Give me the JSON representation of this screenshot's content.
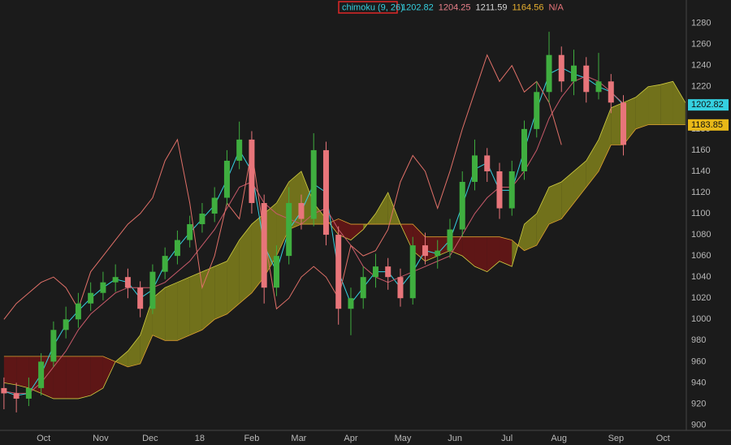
{
  "chart_data": {
    "type": "candlestick",
    "study_label": "chimoku (9, 26)",
    "study_values": [
      {
        "value": 1202.82,
        "color": "#35d0e0"
      },
      {
        "value": 1204.25,
        "color": "#e9808a"
      },
      {
        "value": 1211.59,
        "color": "#d8d8d8"
      },
      {
        "value": 1164.56,
        "color": "#e8b030"
      }
    ],
    "study_na": "N/A",
    "xlim": [
      -1.6,
      275.4
    ],
    "xticks": [
      {
        "value": 16,
        "label": "Oct"
      },
      {
        "value": 39,
        "label": "Nov"
      },
      {
        "value": 59,
        "label": "Dec"
      },
      {
        "value": 79,
        "label": "18"
      },
      {
        "value": 100,
        "label": "Feb"
      },
      {
        "value": 119,
        "label": "Mar"
      },
      {
        "value": 140,
        "label": "Apr"
      },
      {
        "value": 161,
        "label": "May"
      },
      {
        "value": 182,
        "label": "Jun"
      },
      {
        "value": 203,
        "label": "Jul"
      },
      {
        "value": 224,
        "label": "Aug"
      },
      {
        "value": 247,
        "label": "Sep"
      },
      {
        "value": 266,
        "label": "Oct"
      }
    ],
    "ylim": [
      895,
      1302
    ],
    "yticks": [
      900,
      920,
      940,
      960,
      980,
      1000,
      1020,
      1040,
      1060,
      1080,
      1100,
      1120,
      1140,
      1160,
      1180,
      1200,
      1220,
      1240,
      1260,
      1280
    ],
    "grid": true,
    "up_color": "#3fae3f",
    "down_color": "#e8757a",
    "x": [
      0,
      5,
      10,
      15,
      20,
      25,
      30,
      35,
      40,
      45,
      50,
      55,
      60,
      65,
      70,
      75,
      80,
      85,
      90,
      95,
      100,
      105,
      110,
      115,
      120,
      125,
      130,
      135,
      140,
      145,
      150,
      155,
      160,
      165,
      170,
      175,
      180,
      185,
      190,
      195,
      200,
      205,
      210,
      215,
      220,
      225,
      230,
      235,
      240,
      245,
      250
    ],
    "open": [
      935,
      930,
      925,
      935,
      960,
      990,
      1000,
      1015,
      1025,
      1035,
      1040,
      1030,
      1010,
      1045,
      1060,
      1075,
      1090,
      1100,
      1115,
      1150,
      1170,
      1110,
      1030,
      1060,
      1110,
      1095,
      1160,
      1080,
      1010,
      1020,
      1040,
      1050,
      1040,
      1020,
      1070,
      1060,
      1065,
      1085,
      1130,
      1155,
      1140,
      1105,
      1140,
      1180,
      1215,
      1250,
      1225,
      1240,
      1215,
      1225,
      1205
    ],
    "high": [
      945,
      940,
      945,
      968,
      998,
      1012,
      1025,
      1035,
      1045,
      1052,
      1048,
      1036,
      1052,
      1068,
      1084,
      1098,
      1110,
      1125,
      1160,
      1187,
      1178,
      1118,
      1070,
      1125,
      1118,
      1176,
      1168,
      1088,
      1030,
      1050,
      1062,
      1058,
      1048,
      1078,
      1082,
      1075,
      1095,
      1140,
      1170,
      1162,
      1148,
      1150,
      1188,
      1225,
      1272,
      1258,
      1255,
      1248,
      1252,
      1232,
      1212
    ],
    "low": [
      915,
      912,
      918,
      928,
      955,
      982,
      992,
      1008,
      1018,
      1026,
      1020,
      1002,
      1005,
      1038,
      1052,
      1068,
      1082,
      1092,
      1108,
      1142,
      1100,
      1015,
      1022,
      1052,
      1085,
      1088,
      1070,
      995,
      985,
      1010,
      1030,
      1028,
      1012,
      1014,
      1052,
      1048,
      1058,
      1078,
      1122,
      1130,
      1095,
      1098,
      1132,
      1172,
      1205,
      1215,
      1212,
      1205,
      1208,
      1195,
      1155
    ],
    "close": [
      930,
      925,
      935,
      960,
      990,
      1000,
      1015,
      1025,
      1035,
      1040,
      1030,
      1010,
      1045,
      1060,
      1075,
      1090,
      1100,
      1115,
      1150,
      1170,
      1110,
      1030,
      1060,
      1110,
      1095,
      1160,
      1080,
      1010,
      1020,
      1040,
      1050,
      1040,
      1020,
      1070,
      1060,
      1065,
      1085,
      1130,
      1155,
      1140,
      1105,
      1140,
      1180,
      1215,
      1250,
      1225,
      1240,
      1215,
      1225,
      1205,
      1165
    ],
    "lines": [
      {
        "color": "#35d0e0",
        "x": [
          0,
          5,
          10,
          15,
          20,
          25,
          30,
          35,
          40,
          45,
          50,
          55,
          60,
          65,
          70,
          75,
          80,
          85,
          90,
          95,
          100,
          105,
          110,
          115,
          120,
          125,
          130,
          135,
          140,
          145,
          150,
          155,
          160,
          165,
          170,
          175,
          180,
          185,
          190,
          195,
          200,
          205,
          210,
          215,
          220,
          225,
          230,
          235,
          240,
          245,
          250
        ],
        "values": [
          932,
          928,
          930,
          948,
          975,
          995,
          1008,
          1020,
          1030,
          1038,
          1035,
          1020,
          1028,
          1052,
          1068,
          1082,
          1095,
          1108,
          1132,
          1160,
          1140,
          1070,
          1045,
          1085,
          1102,
          1128,
          1120,
          1045,
          1015,
          1030,
          1045,
          1045,
          1030,
          1045,
          1065,
          1062,
          1075,
          1108,
          1142,
          1148,
          1122,
          1122,
          1160,
          1198,
          1232,
          1238,
          1232,
          1228,
          1220,
          1215,
          1203
        ]
      },
      {
        "color": "#c85a6a",
        "x": [
          0,
          5,
          10,
          15,
          20,
          25,
          30,
          35,
          40,
          45,
          50,
          55,
          60,
          65,
          70,
          75,
          80,
          85,
          90,
          95,
          100,
          105,
          110,
          115,
          120,
          125,
          130,
          135,
          140,
          145,
          150,
          155,
          160,
          165,
          170,
          175,
          180,
          185,
          190,
          195,
          200,
          205,
          210,
          215,
          220,
          225,
          230,
          235,
          240,
          245,
          250
        ],
        "values": [
          932,
          930,
          930,
          940,
          955,
          970,
          990,
          1005,
          1015,
          1025,
          1030,
          1030,
          1030,
          1035,
          1045,
          1055,
          1070,
          1085,
          1105,
          1125,
          1130,
          1110,
          1100,
          1095,
          1090,
          1100,
          1105,
          1085,
          1070,
          1050,
          1040,
          1035,
          1040,
          1045,
          1050,
          1055,
          1060,
          1080,
          1100,
          1115,
          1125,
          1125,
          1140,
          1160,
          1190,
          1210,
          1225,
          1230,
          1225,
          1215,
          1204
        ]
      },
      {
        "color": "#e07068",
        "x": [
          0,
          5,
          10,
          15,
          20,
          25,
          30,
          35,
          40,
          45,
          50,
          55,
          60,
          65,
          70,
          75,
          80,
          85,
          90,
          95,
          100,
          105,
          110,
          115,
          120,
          125,
          130,
          135,
          140,
          145,
          150,
          155,
          160,
          165,
          170,
          175,
          180,
          185,
          190,
          195,
          200,
          205,
          210,
          215,
          220,
          225
        ],
        "values": [
          1000,
          1015,
          1025,
          1035,
          1040,
          1030,
          1010,
          1045,
          1060,
          1075,
          1090,
          1100,
          1115,
          1150,
          1170,
          1110,
          1030,
          1060,
          1110,
          1095,
          1160,
          1080,
          1010,
          1020,
          1040,
          1050,
          1040,
          1020,
          1070,
          1060,
          1065,
          1085,
          1130,
          1155,
          1140,
          1105,
          1140,
          1180,
          1215,
          1250,
          1225,
          1240,
          1215,
          1225,
          1205,
          1165
        ]
      }
    ],
    "cloud": {
      "bull_color": "#8f8f1c",
      "bear_color": "#761616",
      "a_color": "#d0cc40",
      "b_color": "#e0a030",
      "x": [
        0,
        5,
        10,
        15,
        20,
        25,
        30,
        35,
        40,
        45,
        50,
        55,
        60,
        65,
        70,
        75,
        80,
        85,
        90,
        95,
        100,
        105,
        110,
        115,
        120,
        125,
        130,
        135,
        140,
        145,
        150,
        155,
        160,
        165,
        170,
        175,
        180,
        185,
        190,
        195,
        200,
        205,
        210,
        215,
        220,
        225,
        230,
        235,
        240,
        245,
        250,
        255,
        260,
        265,
        270,
        275
      ],
      "span_a": [
        940,
        938,
        935,
        930,
        925,
        925,
        925,
        928,
        935,
        960,
        970,
        985,
        1020,
        1030,
        1035,
        1040,
        1045,
        1050,
        1055,
        1075,
        1090,
        1100,
        1110,
        1130,
        1140,
        1110,
        1095,
        1080,
        1075,
        1085,
        1100,
        1120,
        1090,
        1065,
        1055,
        1060,
        1065,
        1060,
        1050,
        1045,
        1055,
        1050,
        1090,
        1100,
        1125,
        1130,
        1140,
        1150,
        1170,
        1200,
        1205,
        1210,
        1220,
        1222,
        1225,
        1205
      ],
      "span_b": [
        965,
        965,
        965,
        965,
        965,
        965,
        965,
        965,
        965,
        960,
        955,
        958,
        985,
        980,
        980,
        985,
        990,
        1000,
        1005,
        1015,
        1025,
        1040,
        1060,
        1085,
        1090,
        1090,
        1090,
        1095,
        1090,
        1090,
        1090,
        1090,
        1090,
        1090,
        1078,
        1078,
        1078,
        1078,
        1078,
        1078,
        1078,
        1075,
        1065,
        1070,
        1090,
        1095,
        1110,
        1125,
        1140,
        1165,
        1165,
        1180,
        1184,
        1184,
        1184,
        1184
      ]
    },
    "price_badges": [
      {
        "value": 1202.82,
        "color": "#35d0e0"
      },
      {
        "value": 1183.85,
        "color": "#e8b818"
      }
    ]
  }
}
